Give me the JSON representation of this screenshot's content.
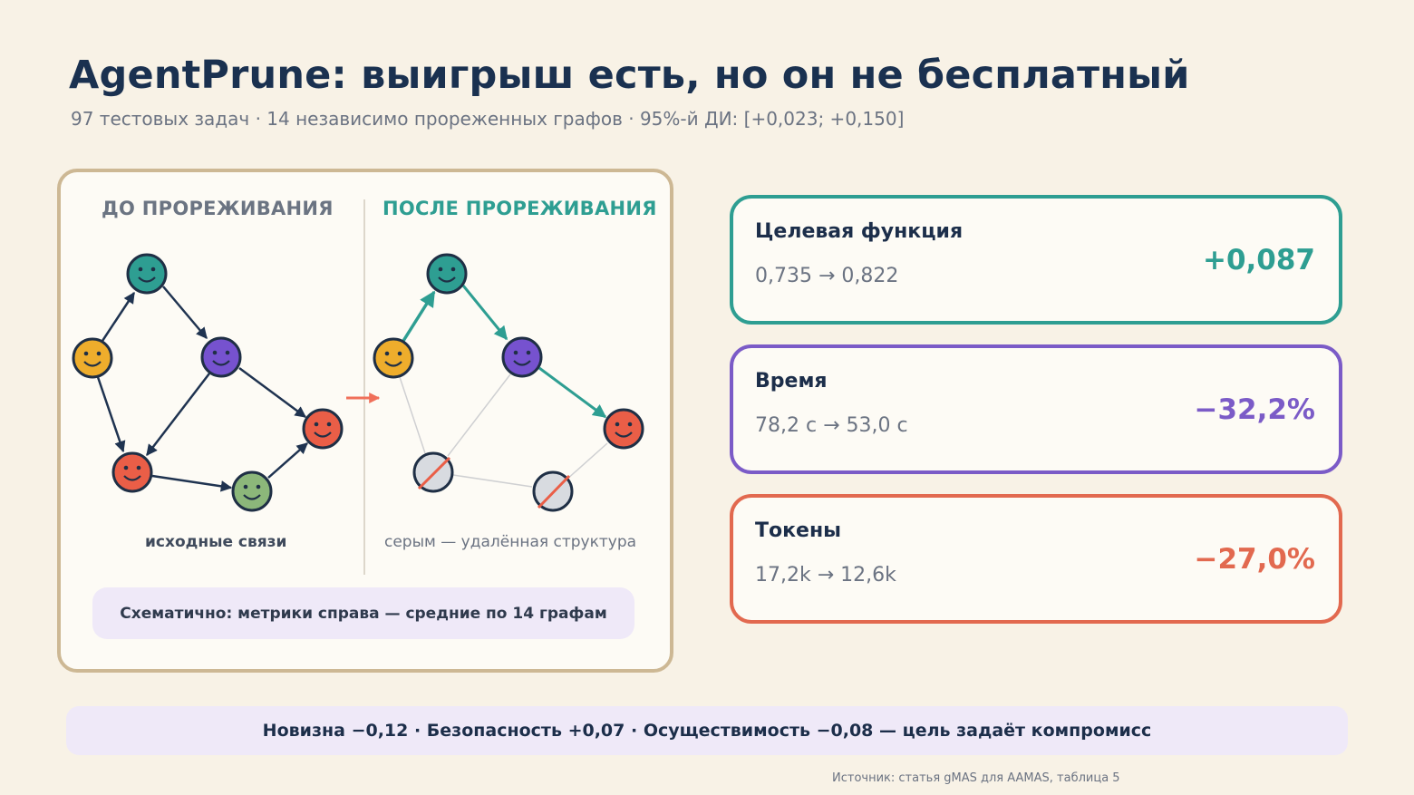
{
  "header": {
    "title": "AgentPrune: выигрыш есть, но он не бесплатный",
    "subtitle": "97 тестовых задач · 14 независимо прореженных графов · 95%-й ДИ: [+0,023; +0,150]"
  },
  "diagram": {
    "before_heading": "ДО ПРОРЕЖИВАНИЯ",
    "after_heading": "ПОСЛЕ ПРОРЕЖИВАНИЯ",
    "before_caption": "исходные связи",
    "after_caption": "серым — удалённая структура",
    "note": "Схематично: метрики справа — средние по 14 графам",
    "colors": {
      "teal": "#2e9e92",
      "yellow": "#eead2c",
      "purple": "#7652cf",
      "red": "#ea5e47",
      "green": "#8cb77a",
      "removed": "#d8dbe0",
      "arrow": "#f0705a",
      "edge": "#1f3350"
    }
  },
  "metrics": {
    "objective": {
      "label": "Целевая функция",
      "change": "0,735 → 0,822",
      "delta": "+0,087",
      "color": "#2e9e92"
    },
    "time": {
      "label": "Время",
      "change": "78,2 с → 53,0 с",
      "delta": "−32,2%",
      "color": "#7b5bc7"
    },
    "tokens": {
      "label": "Токены",
      "change": "17,2k → 12,6k",
      "delta": "−27,0%",
      "color": "#e2694f"
    }
  },
  "footer": {
    "tradeoff": "Новизна −0,12 · Безопасность +0,07 · Осуществимость −0,08 — цель задаёт компромисс",
    "source": "Источник: статья gMAS для AAMAS, таблица 5"
  }
}
